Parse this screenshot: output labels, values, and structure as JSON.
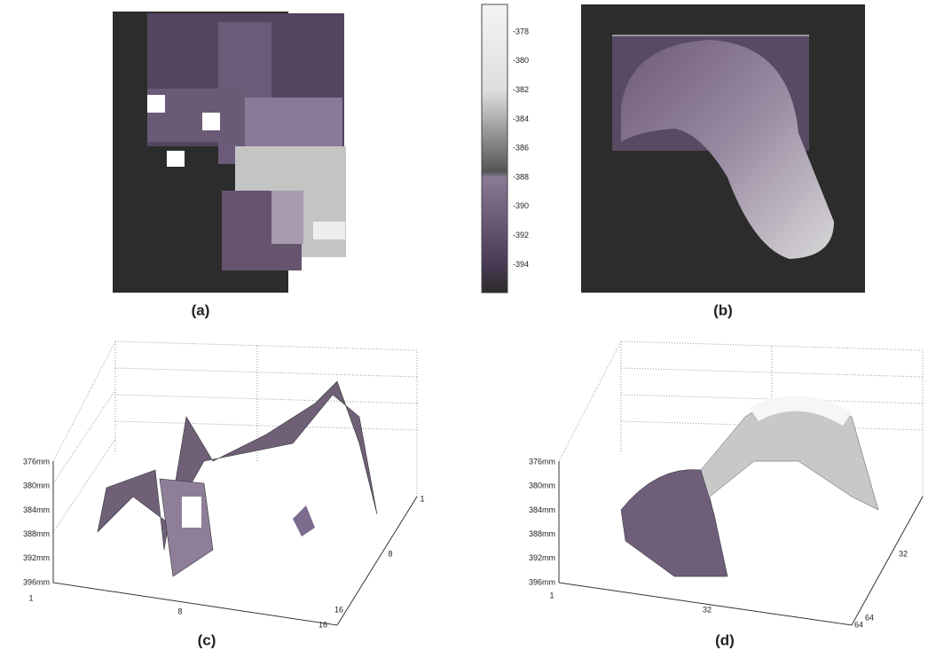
{
  "panels": [
    {
      "caption": "(a)"
    },
    {
      "caption": "(b)"
    },
    {
      "caption": "(c)"
    },
    {
      "caption": "(d)"
    }
  ],
  "colorbar": {
    "ticks": [
      "-378",
      "-380",
      "-382",
      "-384",
      "-386",
      "-388",
      "-390",
      "-392",
      "-394"
    ]
  },
  "plot_c": {
    "z_labels": [
      "376mm",
      "380mm",
      "384mm",
      "388mm",
      "392mm",
      "396mm"
    ],
    "x_labels": [
      "1",
      "8",
      "16"
    ],
    "y_labels": [
      "1",
      "8",
      "16"
    ]
  },
  "plot_d": {
    "z_labels": [
      "376mm",
      "380mm",
      "384mm",
      "388mm",
      "392mm",
      "396mm"
    ],
    "x_labels": [
      "1",
      "32",
      "64"
    ],
    "y_labels": [
      "32",
      "64"
    ]
  }
}
